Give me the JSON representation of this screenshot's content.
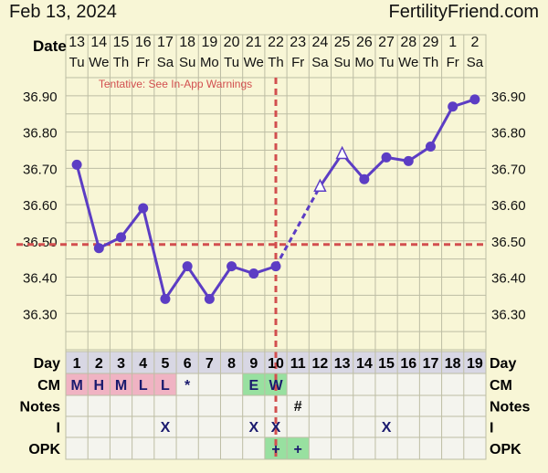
{
  "header": {
    "date": "Feb 13, 2024",
    "brand": "FertilityFriend.com"
  },
  "labels": {
    "date": "Date",
    "day": "Day",
    "cm": "CM",
    "notes": "Notes",
    "i": "I",
    "opk": "OPK"
  },
  "tentative_note": "Tentative: See In-App Warnings",
  "colors": {
    "background": "#f8f6d6",
    "grid": "#bdbda4",
    "line": "#5c3dc4",
    "coverline": "#d24f4f",
    "cm_pink": "#f0b3c3",
    "cm_green": "#98e0a0",
    "row_label_bg": "#d8d7e4"
  },
  "chart_data": {
    "type": "line",
    "title": "",
    "xlabel": "Day",
    "ylabel": "",
    "ylim": [
      36.2,
      36.95
    ],
    "yticks": [
      "36.90",
      "36.80",
      "36.70",
      "36.60",
      "36.50",
      "36.40",
      "36.30"
    ],
    "grid": true,
    "days": [
      "1",
      "2",
      "3",
      "4",
      "5",
      "6",
      "7",
      "8",
      "9",
      "10",
      "11",
      "12",
      "13",
      "14",
      "15",
      "16",
      "17",
      "18",
      "19"
    ],
    "dates": [
      "13",
      "14",
      "15",
      "16",
      "17",
      "18",
      "19",
      "20",
      "21",
      "22",
      "23",
      "24",
      "25",
      "26",
      "27",
      "28",
      "29",
      "1",
      "2"
    ],
    "weekdays": [
      "Tu",
      "We",
      "Th",
      "Fr",
      "Sa",
      "Su",
      "Mo",
      "Tu",
      "We",
      "Th",
      "Fr",
      "Sa",
      "Su",
      "Mo",
      "Tu",
      "We",
      "Th",
      "Fr",
      "Sa"
    ],
    "temperatures": [
      36.71,
      36.48,
      36.51,
      36.59,
      36.34,
      36.43,
      36.34,
      36.43,
      36.41,
      36.43,
      null,
      36.65,
      36.74,
      36.67,
      36.73,
      36.72,
      36.76,
      36.87,
      36.89
    ],
    "open_triangle_days": [
      12,
      13
    ],
    "coverline": 36.49,
    "ovulation_day": 10,
    "cervical_mucus": [
      "M",
      "H",
      "M",
      "L",
      "L",
      "*",
      "",
      "",
      "E",
      "W",
      "",
      "",
      "",
      "",
      "",
      "",
      "",
      "",
      ""
    ],
    "cm_colors": [
      "pink",
      "pink",
      "pink",
      "pink",
      "pink",
      "",
      "",
      "",
      "green",
      "green",
      "",
      "",
      "",
      "",
      "",
      "",
      "",
      "",
      ""
    ],
    "notes": [
      "",
      "",
      "",
      "",
      "",
      "",
      "",
      "",
      "",
      "",
      "#",
      "",
      "",
      "",
      "",
      "",
      "",
      "",
      ""
    ],
    "intercourse": [
      "",
      "",
      "",
      "",
      "X",
      "",
      "",
      "",
      "X",
      "X",
      "",
      "",
      "",
      "",
      "X",
      "",
      "",
      "",
      ""
    ],
    "opk": [
      "",
      "",
      "",
      "",
      "",
      "",
      "",
      "",
      "",
      "+",
      "+",
      "",
      "",
      "",
      "",
      "",
      "",
      "",
      ""
    ]
  }
}
